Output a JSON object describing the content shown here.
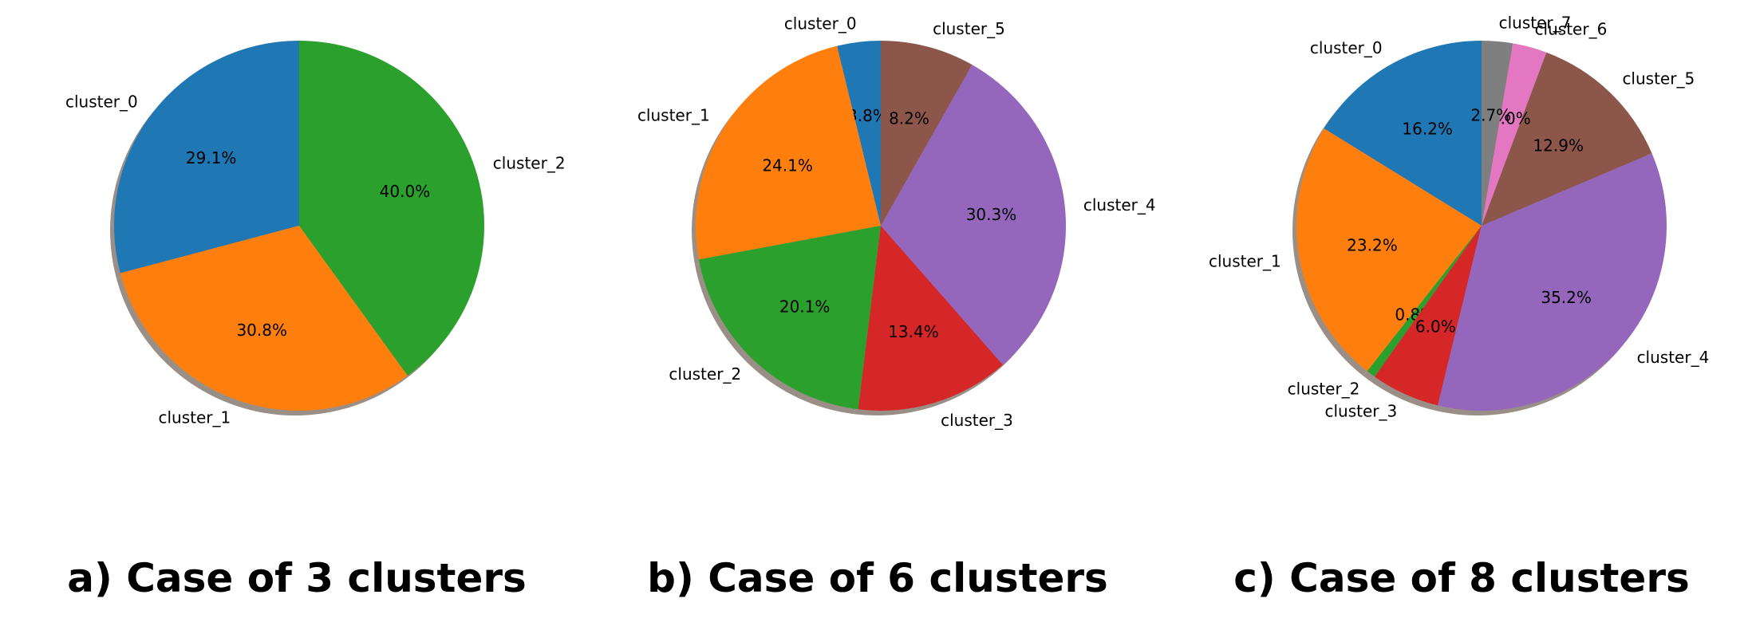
{
  "colors": {
    "cluster_0": "#1f77b4",
    "cluster_1": "#ff7f0e",
    "cluster_2": "#2ca02c",
    "cluster_3": "#d62728",
    "cluster_4": "#9467bd",
    "cluster_5": "#8c564b",
    "cluster_6": "#e377c2",
    "cluster_7": "#7f7f7f",
    "shadow": "#9a8f86"
  },
  "chart_data": [
    {
      "type": "pie",
      "caption": "a) Case of 3 clusters",
      "start_angle_deg": 90,
      "direction": "counterclockwise",
      "shadow": true,
      "slices": [
        {
          "label": "cluster_0",
          "value": 29.1,
          "pct_text": "29.1%"
        },
        {
          "label": "cluster_1",
          "value": 30.8,
          "pct_text": "30.8%"
        },
        {
          "label": "cluster_2",
          "value": 40.0,
          "pct_text": "40.0%"
        }
      ]
    },
    {
      "type": "pie",
      "caption": "b) Case of 6 clusters",
      "start_angle_deg": 90,
      "direction": "counterclockwise",
      "shadow": true,
      "slices": [
        {
          "label": "cluster_0",
          "value": 3.8,
          "pct_text": "3.8%"
        },
        {
          "label": "cluster_1",
          "value": 24.1,
          "pct_text": "24.1%"
        },
        {
          "label": "cluster_2",
          "value": 20.1,
          "pct_text": "20.1%"
        },
        {
          "label": "cluster_3",
          "value": 13.4,
          "pct_text": "13.4%"
        },
        {
          "label": "cluster_4",
          "value": 30.3,
          "pct_text": "30.3%"
        },
        {
          "label": "cluster_5",
          "value": 8.2,
          "pct_text": "8.2%"
        }
      ]
    },
    {
      "type": "pie",
      "caption": "c) Case of 8 clusters",
      "start_angle_deg": 90,
      "direction": "counterclockwise",
      "shadow": true,
      "slices": [
        {
          "label": "cluster_0",
          "value": 16.2,
          "pct_text": "16.2%"
        },
        {
          "label": "cluster_1",
          "value": 23.2,
          "pct_text": "23.2%"
        },
        {
          "label": "cluster_2",
          "value": 0.8,
          "pct_text": "0.8%"
        },
        {
          "label": "cluster_3",
          "value": 6.0,
          "pct_text": "6.0%"
        },
        {
          "label": "cluster_4",
          "value": 35.2,
          "pct_text": "35.2%"
        },
        {
          "label": "cluster_5",
          "value": 12.9,
          "pct_text": "12.9%"
        },
        {
          "label": "cluster_6",
          "value": 3.0,
          "pct_text": "3.0%"
        },
        {
          "label": "cluster_7",
          "value": 2.7,
          "pct_text": "2.7%"
        }
      ]
    }
  ]
}
